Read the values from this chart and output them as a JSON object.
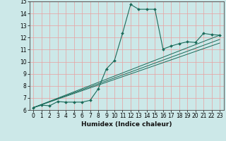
{
  "xlabel": "Humidex (Indice chaleur)",
  "xlim": [
    -0.5,
    23.5
  ],
  "ylim": [
    6,
    15
  ],
  "xticks": [
    0,
    1,
    2,
    3,
    4,
    5,
    6,
    7,
    8,
    9,
    10,
    11,
    12,
    13,
    14,
    15,
    16,
    17,
    18,
    19,
    20,
    21,
    22,
    23
  ],
  "yticks": [
    6,
    7,
    8,
    9,
    10,
    11,
    12,
    13,
    14,
    15
  ],
  "bg_color": "#cce8e8",
  "grid_color": "#e8a0a0",
  "line_color": "#1a6b5a",
  "series": [
    {
      "x": [
        0,
        1,
        2,
        3,
        4,
        5,
        6,
        7,
        8,
        9,
        10,
        11,
        12,
        13,
        14,
        15,
        16,
        17,
        18,
        19,
        20,
        21,
        22,
        23
      ],
      "y": [
        6.2,
        6.4,
        6.35,
        6.7,
        6.65,
        6.65,
        6.65,
        6.8,
        7.75,
        9.4,
        10.1,
        12.35,
        14.75,
        14.35,
        14.35,
        14.35,
        11.05,
        11.3,
        11.5,
        11.65,
        11.6,
        12.35,
        12.25,
        12.2
      ],
      "with_markers": true
    },
    {
      "x": [
        0,
        23
      ],
      "y": [
        6.2,
        12.2
      ],
      "with_markers": false
    },
    {
      "x": [
        0,
        23
      ],
      "y": [
        6.2,
        11.85
      ],
      "with_markers": false
    },
    {
      "x": [
        0,
        23
      ],
      "y": [
        6.2,
        11.55
      ],
      "with_markers": false
    }
  ]
}
